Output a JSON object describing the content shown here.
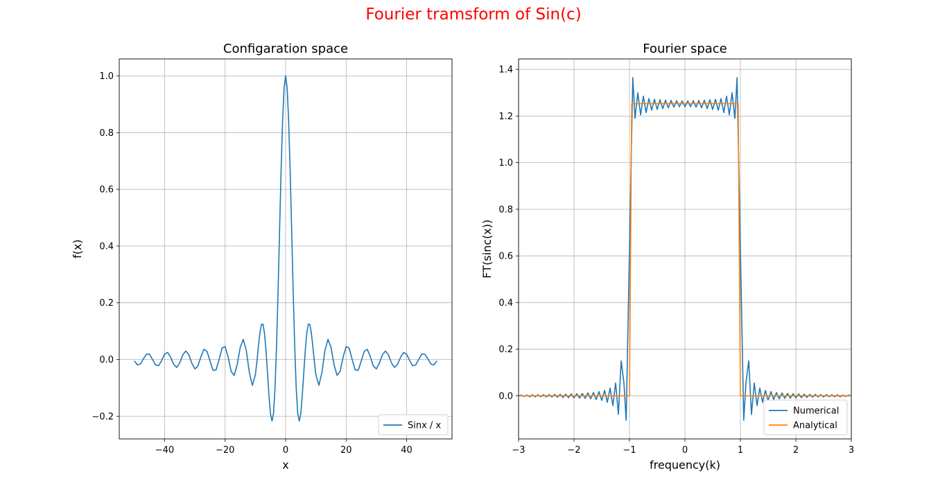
{
  "figure": {
    "suptitle": "Fourier tramsform of Sin(c)",
    "suptitle_color": "#ff0000"
  },
  "chart_data": [
    {
      "type": "line",
      "title": "Configaration space",
      "xlabel": "x",
      "ylabel": "f(x)",
      "xlim": [
        -55,
        55
      ],
      "ylim": [
        -0.28,
        1.06
      ],
      "xticks": [
        -40,
        -20,
        0,
        20,
        40
      ],
      "xtick_labels": [
        "−40",
        "−20",
        "0",
        "20",
        "40"
      ],
      "yticks": [
        -0.2,
        0.0,
        0.2,
        0.4,
        0.6,
        0.8,
        1.0
      ],
      "ytick_labels": [
        "−0.2",
        "0.0",
        "0.2",
        "0.4",
        "0.6",
        "0.8",
        "1.0"
      ],
      "grid": true,
      "legend": {
        "position": "lower-right",
        "entries": [
          "Sinx / x"
        ]
      },
      "series": [
        {
          "name": "Sinx / x",
          "color": "#1f77b4",
          "x": [
            -50,
            -49,
            -48,
            -47,
            -46,
            -45,
            -44,
            -43,
            -42,
            -41,
            -40,
            -39,
            -38,
            -37,
            -36,
            -35,
            -34,
            -33,
            -32,
            -31,
            -30,
            -29,
            -28,
            -27,
            -26,
            -25,
            -24,
            -23,
            -22,
            -21,
            -20,
            -19,
            -18,
            -17,
            -16,
            -15,
            -14,
            -13,
            -12,
            -11,
            -10,
            -9.5,
            -9,
            -8.5,
            -8,
            -7.5,
            -7,
            -6.5,
            -6,
            -5.5,
            -5,
            -4.5,
            -4,
            -3.5,
            -3,
            -2.5,
            -2,
            -1.5,
            -1,
            -0.5,
            0,
            0.5,
            1,
            1.5,
            2,
            2.5,
            3,
            3.5,
            4,
            4.5,
            5,
            5.5,
            6,
            6.5,
            7,
            7.5,
            8,
            8.5,
            9,
            9.5,
            10,
            11,
            12,
            13,
            14,
            15,
            16,
            17,
            18,
            19,
            20,
            21,
            22,
            23,
            24,
            25,
            26,
            27,
            28,
            29,
            30,
            31,
            32,
            33,
            34,
            35,
            36,
            37,
            38,
            39,
            40,
            41,
            42,
            43,
            44,
            45,
            46,
            47,
            48,
            49,
            50
          ],
          "y": [
            -0.005,
            -0.019,
            -0.016,
            0.003,
            0.019,
            0.019,
            0.0,
            -0.019,
            -0.022,
            -0.004,
            0.019,
            0.025,
            0.008,
            -0.017,
            -0.028,
            -0.012,
            0.016,
            0.03,
            0.017,
            -0.013,
            -0.033,
            -0.023,
            0.01,
            0.036,
            0.029,
            -0.005,
            -0.038,
            -0.037,
            0.0,
            0.04,
            0.046,
            0.008,
            -0.042,
            -0.056,
            -0.018,
            0.043,
            0.071,
            0.032,
            -0.045,
            -0.091,
            -0.054,
            -0.008,
            0.046,
            0.094,
            0.124,
            0.125,
            0.094,
            0.033,
            -0.047,
            -0.128,
            -0.192,
            -0.217,
            -0.189,
            -0.1,
            0.047,
            0.239,
            0.455,
            0.665,
            0.841,
            0.959,
            1.0,
            0.959,
            0.841,
            0.665,
            0.455,
            0.239,
            0.047,
            -0.1,
            -0.189,
            -0.217,
            -0.192,
            -0.128,
            -0.047,
            0.033,
            0.094,
            0.125,
            0.124,
            0.094,
            0.046,
            -0.008,
            -0.054,
            -0.091,
            -0.045,
            0.032,
            0.071,
            0.043,
            -0.018,
            -0.056,
            -0.042,
            0.008,
            0.046,
            0.04,
            0.0,
            -0.037,
            -0.038,
            -0.005,
            0.029,
            0.036,
            0.01,
            -0.023,
            -0.033,
            -0.013,
            0.017,
            0.03,
            0.016,
            -0.012,
            -0.028,
            -0.017,
            0.008,
            0.025,
            0.019,
            -0.004,
            -0.022,
            -0.019,
            0.0,
            0.019,
            0.019,
            0.003,
            -0.016,
            -0.019,
            -0.005
          ]
        }
      ]
    },
    {
      "type": "line",
      "title": "Fourier space",
      "xlabel": "frequency(k)",
      "ylabel": "FT(sinc(x))",
      "xlim": [
        -3,
        3
      ],
      "ylim": [
        -0.185,
        1.445
      ],
      "xticks": [
        -3,
        -2,
        -1,
        0,
        1,
        2,
        3
      ],
      "xtick_labels": [
        "−3",
        "−2",
        "−1",
        "0",
        "1",
        "2",
        "3"
      ],
      "yticks": [
        0.0,
        0.2,
        0.4,
        0.6,
        0.8,
        1.0,
        1.2,
        1.4
      ],
      "ytick_labels": [
        "0.0",
        "0.2",
        "0.4",
        "0.6",
        "0.8",
        "1.0",
        "1.2",
        "1.4"
      ],
      "grid": true,
      "legend": {
        "position": "lower-right",
        "entries": [
          "Numerical",
          "Analytical"
        ]
      },
      "series": [
        {
          "name": "Numerical",
          "color": "#1f77b4",
          "x": [
            -3.0,
            -2.95,
            -2.9,
            -2.85,
            -2.8,
            -2.75,
            -2.7,
            -2.65,
            -2.6,
            -2.55,
            -2.5,
            -2.45,
            -2.4,
            -2.35,
            -2.3,
            -2.25,
            -2.2,
            -2.15,
            -2.1,
            -2.05,
            -2.0,
            -1.95,
            -1.9,
            -1.85,
            -1.8,
            -1.75,
            -1.7,
            -1.65,
            -1.6,
            -1.55,
            -1.5,
            -1.45,
            -1.4,
            -1.35,
            -1.3,
            -1.25,
            -1.2,
            -1.15,
            -1.1,
            -1.06,
            -1.0,
            -0.94,
            -0.9,
            -0.85,
            -0.8,
            -0.75,
            -0.7,
            -0.65,
            -0.6,
            -0.55,
            -0.5,
            -0.45,
            -0.4,
            -0.35,
            -0.3,
            -0.25,
            -0.2,
            -0.15,
            -0.1,
            -0.05,
            0.0,
            0.05,
            0.1,
            0.15,
            0.2,
            0.25,
            0.3,
            0.35,
            0.4,
            0.45,
            0.5,
            0.55,
            0.6,
            0.65,
            0.7,
            0.75,
            0.8,
            0.85,
            0.9,
            0.94,
            1.0,
            1.06,
            1.1,
            1.15,
            1.2,
            1.25,
            1.3,
            1.35,
            1.4,
            1.45,
            1.5,
            1.55,
            1.6,
            1.65,
            1.7,
            1.75,
            1.8,
            1.85,
            1.9,
            1.95,
            2.0,
            2.05,
            2.1,
            2.15,
            2.2,
            2.25,
            2.3,
            2.35,
            2.4,
            2.45,
            2.5,
            2.55,
            2.6,
            2.65,
            2.7,
            2.75,
            2.8,
            2.85,
            2.9,
            2.95,
            3.0
          ],
          "y": [
            0.0,
            0.003,
            -0.003,
            0.003,
            -0.004,
            0.004,
            -0.004,
            0.004,
            -0.004,
            0.005,
            -0.005,
            0.005,
            -0.005,
            0.006,
            -0.006,
            0.006,
            -0.007,
            0.007,
            -0.008,
            0.008,
            -0.009,
            0.009,
            -0.01,
            0.01,
            -0.011,
            0.012,
            -0.013,
            0.014,
            -0.016,
            0.018,
            -0.02,
            0.023,
            -0.028,
            0.033,
            -0.042,
            0.055,
            -0.08,
            0.15,
            0.055,
            -0.105,
            0.63,
            1.365,
            1.19,
            1.3,
            1.205,
            1.285,
            1.215,
            1.275,
            1.225,
            1.272,
            1.228,
            1.27,
            1.232,
            1.268,
            1.235,
            1.267,
            1.238,
            1.266,
            1.24,
            1.265,
            1.24,
            1.265,
            1.24,
            1.266,
            1.238,
            1.267,
            1.235,
            1.268,
            1.232,
            1.27,
            1.228,
            1.272,
            1.225,
            1.275,
            1.215,
            1.285,
            1.205,
            1.3,
            1.19,
            1.365,
            0.63,
            -0.105,
            0.055,
            0.15,
            -0.08,
            0.055,
            -0.042,
            0.033,
            -0.028,
            0.023,
            -0.02,
            0.018,
            -0.016,
            0.014,
            -0.013,
            0.012,
            -0.011,
            0.01,
            -0.01,
            0.009,
            -0.009,
            0.008,
            -0.008,
            0.007,
            -0.007,
            0.006,
            -0.006,
            0.006,
            -0.005,
            0.005,
            -0.005,
            0.005,
            -0.004,
            0.004,
            -0.004,
            0.004,
            -0.004,
            0.003,
            -0.003,
            0.003,
            0.0
          ]
        },
        {
          "name": "Analytical",
          "color": "#ff7f0e",
          "x": [
            -3.0,
            -1.0,
            -0.96,
            0.96,
            1.0,
            3.0
          ],
          "y": [
            0.0,
            0.0,
            1.2533,
            1.2533,
            0.0,
            0.0
          ]
        }
      ]
    }
  ]
}
